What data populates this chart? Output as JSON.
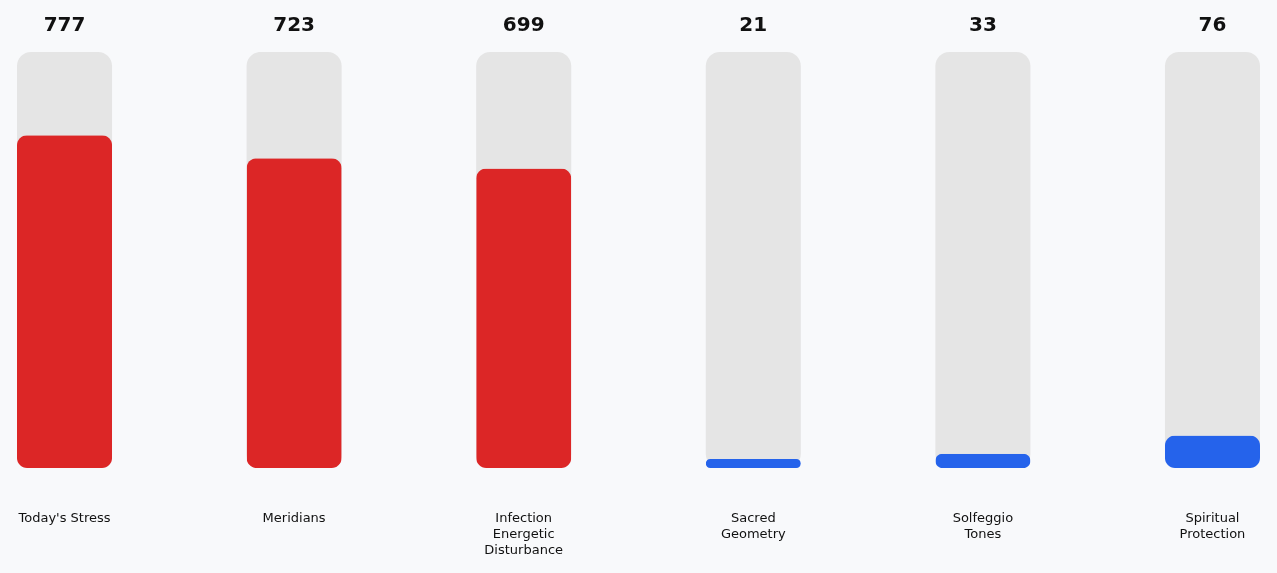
{
  "chart_data": {
    "type": "bar",
    "categories": [
      "Today's Stress",
      "Meridians",
      "Infection\nEnergetic\nDisturbance",
      "Sacred\nGeometry",
      "Solfeggio\nTones",
      "Spiritual\nProtection"
    ],
    "values": [
      777,
      723,
      699,
      21,
      33,
      76
    ],
    "colors": [
      "#dc2626",
      "#dc2626",
      "#dc2626",
      "#2563eb",
      "#2563eb",
      "#2563eb"
    ],
    "value_labels": [
      "777",
      "723",
      "699",
      "21",
      "33",
      "76"
    ],
    "tick_labels": "x",
    "grid": false
  }
}
